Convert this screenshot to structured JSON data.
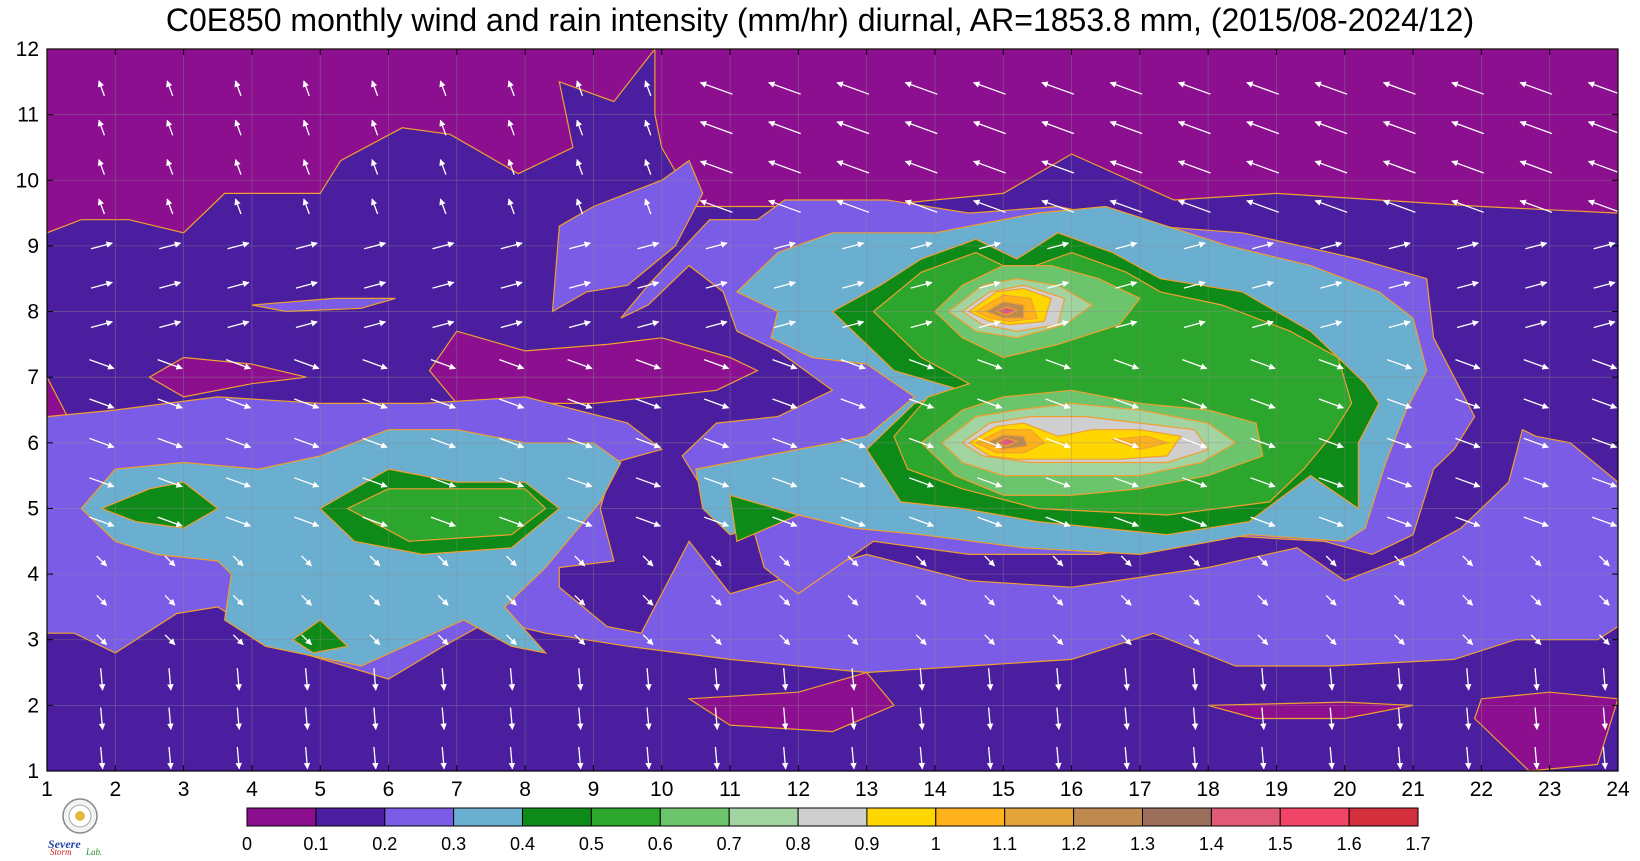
{
  "chart_data": {
    "type": "heatmap",
    "title": "C0E850 monthly wind and rain intensity (mm/hr) diurnal, AR=1853.8 mm, (2015/08-2024/12)",
    "xlabel": "",
    "ylabel": "",
    "x_ticks": [
      1,
      2,
      3,
      4,
      5,
      6,
      7,
      8,
      9,
      10,
      11,
      12,
      13,
      14,
      15,
      16,
      17,
      18,
      19,
      20,
      21,
      22,
      23,
      24
    ],
    "y_ticks": [
      1,
      2,
      3,
      4,
      5,
      6,
      7,
      8,
      9,
      10,
      11,
      12
    ],
    "xlim": [
      1,
      24
    ],
    "ylim": [
      1,
      12
    ],
    "grid": true,
    "colorbar": {
      "levels": [
        "0",
        "0.1",
        "0.2",
        "0.3",
        "0.4",
        "0.5",
        "0.6",
        "0.7",
        "0.8",
        "0.9",
        "1",
        "1.1",
        "1.2",
        "1.3",
        "1.4",
        "1.5",
        "1.6",
        "1.7"
      ],
      "colors": [
        "#8b0f8e",
        "#4a1e9e",
        "#7b5ce6",
        "#6aaed0",
        "#0d8a17",
        "#2ca62c",
        "#6cc46c",
        "#a2d4a2",
        "#cfcfcf",
        "#ffd700",
        "#ffb21c",
        "#e3a43a",
        "#bf8a4f",
        "#9c6f5c",
        "#e05a78",
        "#f24466",
        "#d42f3c"
      ]
    },
    "logo_text": "Severe Storm Lab."
  }
}
